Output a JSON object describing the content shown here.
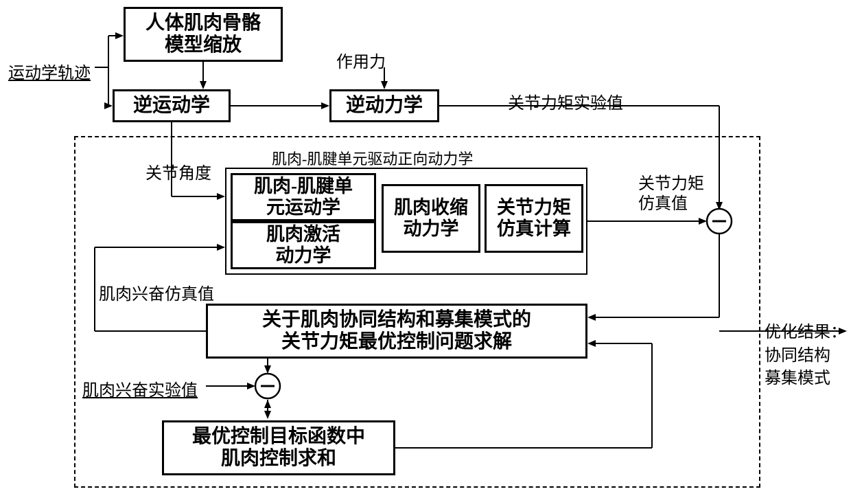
{
  "input_label": "运动学轨迹",
  "boxes": {
    "scaling": "人体肌肉骨骼\n模型缩放",
    "ik": "逆运动学",
    "id": "逆动力学",
    "mtu_kin": "肌肉-肌腱单\n元运动学",
    "muscle_contract": "肌肉收缩\n动力学",
    "torque_sim": "关节力矩\n仿真计算",
    "muscle_act": "肌肉激活\n动力学",
    "optimal": "关于肌肉协同结构和募集模式的\n关节力矩最优控制问题求解",
    "objective": "最优控制目标函数中\n肌肉控制求和"
  },
  "labels": {
    "force": "作用力",
    "joint_torque_exp": "关节力矩实验值",
    "joint_angle": "关节角度",
    "mtu_fd_title": "肌肉-肌腱单元驱动正向动力学",
    "joint_torque_sim": "关节力矩\n仿真值",
    "muscle_excite_sim": "肌肉兴奋仿真值",
    "muscle_excite_exp": "肌肉兴奋实验值",
    "output": "优化结果：\n协同结构\n募集模式"
  },
  "style": {
    "box_border": "#000000",
    "box_border_width": 3,
    "text_color": "#000000",
    "bg": "#ffffff",
    "font_box": 28,
    "font_label": 24
  }
}
